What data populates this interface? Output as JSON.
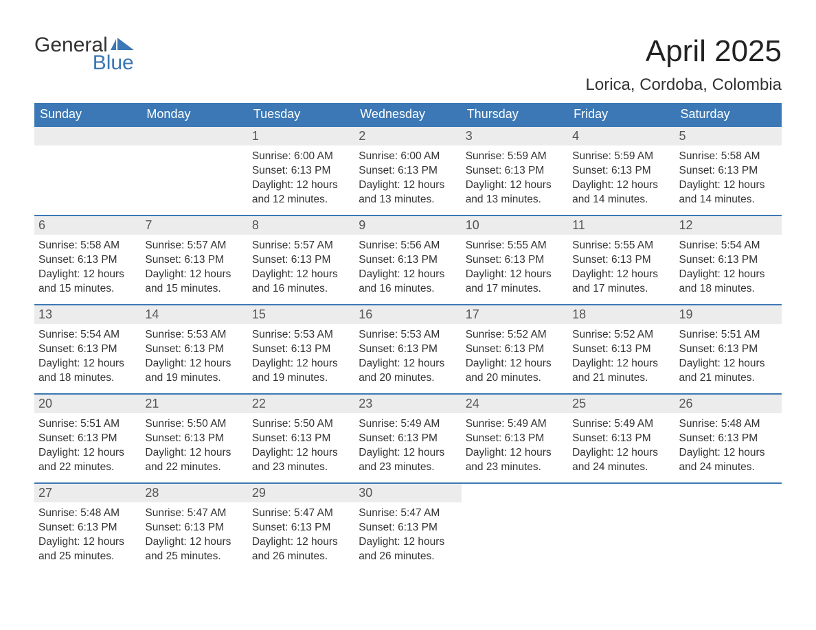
{
  "brand": {
    "line1": "General",
    "line2": "Blue",
    "gray": "#333333",
    "blue": "#3b78b5"
  },
  "title": "April 2025",
  "location": "Lorica, Cordoba, Colombia",
  "colors": {
    "header_bg": "#3b78b5",
    "header_text": "#ffffff",
    "daynum_bg": "#ececec",
    "border": "#3b78b5",
    "body_text": "#333333"
  },
  "weekdays": [
    "Sunday",
    "Monday",
    "Tuesday",
    "Wednesday",
    "Thursday",
    "Friday",
    "Saturday"
  ],
  "weeks": [
    [
      null,
      null,
      {
        "n": "1",
        "sr": "6:00 AM",
        "ss": "6:13 PM",
        "dl": "12 hours and 12 minutes."
      },
      {
        "n": "2",
        "sr": "6:00 AM",
        "ss": "6:13 PM",
        "dl": "12 hours and 13 minutes."
      },
      {
        "n": "3",
        "sr": "5:59 AM",
        "ss": "6:13 PM",
        "dl": "12 hours and 13 minutes."
      },
      {
        "n": "4",
        "sr": "5:59 AM",
        "ss": "6:13 PM",
        "dl": "12 hours and 14 minutes."
      },
      {
        "n": "5",
        "sr": "5:58 AM",
        "ss": "6:13 PM",
        "dl": "12 hours and 14 minutes."
      }
    ],
    [
      {
        "n": "6",
        "sr": "5:58 AM",
        "ss": "6:13 PM",
        "dl": "12 hours and 15 minutes."
      },
      {
        "n": "7",
        "sr": "5:57 AM",
        "ss": "6:13 PM",
        "dl": "12 hours and 15 minutes."
      },
      {
        "n": "8",
        "sr": "5:57 AM",
        "ss": "6:13 PM",
        "dl": "12 hours and 16 minutes."
      },
      {
        "n": "9",
        "sr": "5:56 AM",
        "ss": "6:13 PM",
        "dl": "12 hours and 16 minutes."
      },
      {
        "n": "10",
        "sr": "5:55 AM",
        "ss": "6:13 PM",
        "dl": "12 hours and 17 minutes."
      },
      {
        "n": "11",
        "sr": "5:55 AM",
        "ss": "6:13 PM",
        "dl": "12 hours and 17 minutes."
      },
      {
        "n": "12",
        "sr": "5:54 AM",
        "ss": "6:13 PM",
        "dl": "12 hours and 18 minutes."
      }
    ],
    [
      {
        "n": "13",
        "sr": "5:54 AM",
        "ss": "6:13 PM",
        "dl": "12 hours and 18 minutes."
      },
      {
        "n": "14",
        "sr": "5:53 AM",
        "ss": "6:13 PM",
        "dl": "12 hours and 19 minutes."
      },
      {
        "n": "15",
        "sr": "5:53 AM",
        "ss": "6:13 PM",
        "dl": "12 hours and 19 minutes."
      },
      {
        "n": "16",
        "sr": "5:53 AM",
        "ss": "6:13 PM",
        "dl": "12 hours and 20 minutes."
      },
      {
        "n": "17",
        "sr": "5:52 AM",
        "ss": "6:13 PM",
        "dl": "12 hours and 20 minutes."
      },
      {
        "n": "18",
        "sr": "5:52 AM",
        "ss": "6:13 PM",
        "dl": "12 hours and 21 minutes."
      },
      {
        "n": "19",
        "sr": "5:51 AM",
        "ss": "6:13 PM",
        "dl": "12 hours and 21 minutes."
      }
    ],
    [
      {
        "n": "20",
        "sr": "5:51 AM",
        "ss": "6:13 PM",
        "dl": "12 hours and 22 minutes."
      },
      {
        "n": "21",
        "sr": "5:50 AM",
        "ss": "6:13 PM",
        "dl": "12 hours and 22 minutes."
      },
      {
        "n": "22",
        "sr": "5:50 AM",
        "ss": "6:13 PM",
        "dl": "12 hours and 23 minutes."
      },
      {
        "n": "23",
        "sr": "5:49 AM",
        "ss": "6:13 PM",
        "dl": "12 hours and 23 minutes."
      },
      {
        "n": "24",
        "sr": "5:49 AM",
        "ss": "6:13 PM",
        "dl": "12 hours and 23 minutes."
      },
      {
        "n": "25",
        "sr": "5:49 AM",
        "ss": "6:13 PM",
        "dl": "12 hours and 24 minutes."
      },
      {
        "n": "26",
        "sr": "5:48 AM",
        "ss": "6:13 PM",
        "dl": "12 hours and 24 minutes."
      }
    ],
    [
      {
        "n": "27",
        "sr": "5:48 AM",
        "ss": "6:13 PM",
        "dl": "12 hours and 25 minutes."
      },
      {
        "n": "28",
        "sr": "5:47 AM",
        "ss": "6:13 PM",
        "dl": "12 hours and 25 minutes."
      },
      {
        "n": "29",
        "sr": "5:47 AM",
        "ss": "6:13 PM",
        "dl": "12 hours and 26 minutes."
      },
      {
        "n": "30",
        "sr": "5:47 AM",
        "ss": "6:13 PM",
        "dl": "12 hours and 26 minutes."
      },
      null,
      null,
      null
    ]
  ],
  "labels": {
    "sunrise": "Sunrise: ",
    "sunset": "Sunset: ",
    "daylight": "Daylight: "
  }
}
